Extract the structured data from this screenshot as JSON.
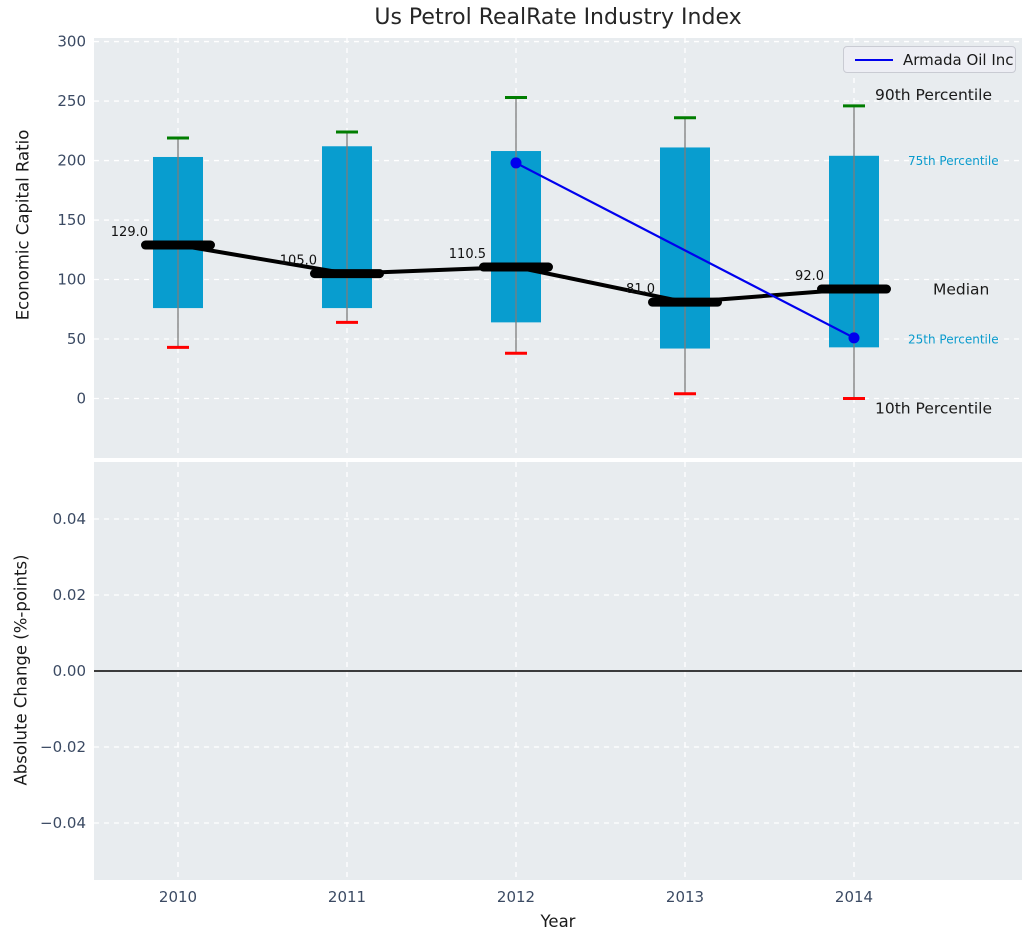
{
  "title": "Us Petrol RealRate Industry Index",
  "colors": {
    "axes_bg": "#e8ecef",
    "grid": "#ffffff",
    "box_fill": "#089dcf",
    "whisker": "#7c7c7c",
    "cap_high": "#007d00",
    "cap_low": "#ff0000",
    "median_line": "#000000",
    "company_line": "#0000ee",
    "tick_text": "#3b4a63",
    "annotation_cyan": "#0a9bcd",
    "annotation_black": "#1a1a1a",
    "zero_line": "#000000"
  },
  "chart_data": [
    {
      "type": "boxplot",
      "title": "Us Petrol RealRate Industry Index",
      "xlabel": "Year",
      "ylabel": "Economic Capital Ratio",
      "categories": [
        "2010",
        "2011",
        "2012",
        "2013",
        "2014"
      ],
      "ylim": [
        -50,
        303
      ],
      "ytick_values": [
        0,
        50,
        100,
        150,
        200,
        250,
        300
      ],
      "ytick_labels": [
        "0",
        "50",
        "100",
        "150",
        "200",
        "250",
        "300"
      ],
      "grid": "dashed-white",
      "series_boxes": {
        "p90": [
          219,
          224,
          253,
          236,
          246
        ],
        "p75": [
          203,
          212,
          208,
          211,
          204
        ],
        "median": [
          129.0,
          105.0,
          110.5,
          81.0,
          92.0
        ],
        "p25": [
          76,
          76,
          64,
          42,
          43
        ],
        "p10": [
          43,
          64,
          38,
          4,
          0
        ]
      },
      "median_labels": [
        "129.0",
        "105.0",
        "110.5",
        "81.0",
        "92.0"
      ],
      "company_series": {
        "name": "Armada Oil Inc",
        "points": [
          {
            "x": "2012",
            "y": 198
          },
          {
            "x": "2014",
            "y": 51
          }
        ]
      },
      "legend": {
        "label": "Armada Oil Inc",
        "position": "upper right"
      },
      "annotations": [
        {
          "label": "90th Percentile",
          "anchor": "p90"
        },
        {
          "label": "75th Percentile",
          "anchor": "p75"
        },
        {
          "label": "Median",
          "anchor": "median"
        },
        {
          "label": "25th Percentile",
          "anchor": "p25"
        },
        {
          "label": "10th Percentile",
          "anchor": "p10"
        }
      ]
    },
    {
      "type": "line",
      "title": "",
      "xlabel": "Year",
      "ylabel": "Absolute Change (%-points)",
      "categories": [
        "2010",
        "2011",
        "2012",
        "2013",
        "2014"
      ],
      "ylim": [
        -0.055,
        0.055
      ],
      "ytick_values": [
        -0.04,
        -0.02,
        0,
        0.02,
        0.04
      ],
      "ytick_labels": [
        "−0.04",
        "−0.02",
        "0.00",
        "0.02",
        "0.04"
      ],
      "grid": "dashed-white",
      "zero_line": 0.0
    }
  ]
}
